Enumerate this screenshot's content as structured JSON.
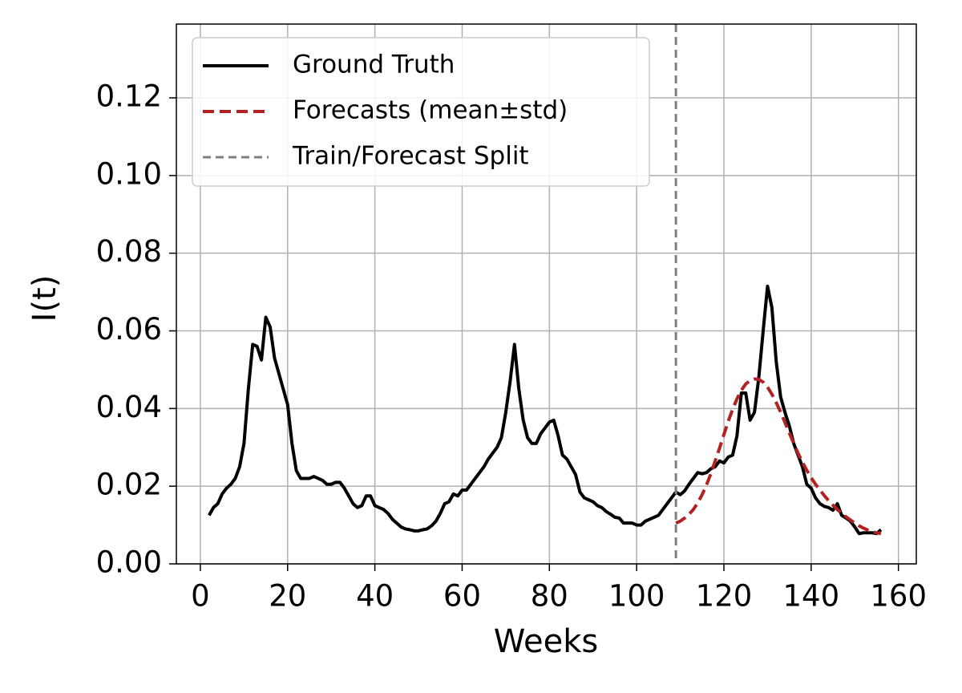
{
  "chart_data": {
    "type": "line",
    "xlabel": "Weeks",
    "ylabel": "I(t)",
    "xlim": [
      -5.5,
      164.1
    ],
    "ylim": [
      0,
      0.139
    ],
    "xticks": [
      0,
      20,
      40,
      60,
      80,
      100,
      120,
      140,
      160
    ],
    "yticks": [
      {
        "value": 0,
        "label": "0.00"
      },
      0.02,
      0.04,
      0.06,
      0.08,
      {
        "value": 0.1,
        "label": "0.10"
      },
      0.12
    ],
    "grid": true,
    "legend": "upper left",
    "series": [
      {
        "name": "Ground Truth",
        "color": "#000000",
        "style": "solid",
        "x": [
          2,
          3,
          4,
          5,
          6,
          7,
          8,
          9,
          10,
          11,
          12,
          13,
          14,
          15,
          16,
          17,
          18,
          19,
          20,
          21,
          22,
          23,
          24,
          25,
          26,
          27,
          28,
          29,
          30,
          31,
          32,
          33,
          34,
          35,
          36,
          37,
          38,
          39,
          40,
          41,
          42,
          43,
          44,
          45,
          46,
          47,
          48,
          49,
          50,
          51,
          52,
          53,
          54,
          55,
          56,
          57,
          58,
          59,
          60,
          61,
          62,
          63,
          64,
          65,
          66,
          67,
          68,
          69,
          70,
          71,
          72,
          73,
          74,
          75,
          76,
          77,
          78,
          79,
          80,
          81,
          82,
          83,
          84,
          85,
          86,
          87,
          88,
          89,
          90,
          91,
          92,
          93,
          94,
          95,
          96,
          97,
          98,
          99,
          100,
          101,
          102,
          103,
          104,
          105,
          106,
          107,
          108,
          109,
          110,
          111,
          112,
          113,
          114,
          115,
          116,
          117,
          118,
          119,
          120,
          121,
          122,
          123,
          124,
          125,
          126,
          127,
          128,
          129,
          130,
          131,
          132,
          133,
          134,
          135,
          136,
          137,
          138,
          139,
          140,
          141,
          142,
          143,
          144,
          145,
          146,
          147,
          148,
          149,
          150,
          151,
          152,
          153,
          154,
          155,
          156
        ],
        "values": [
          0.0125,
          0.0145,
          0.0155,
          0.018,
          0.0195,
          0.0205,
          0.022,
          0.025,
          0.031,
          0.045,
          0.0565,
          0.056,
          0.0525,
          0.0635,
          0.061,
          0.053,
          0.049,
          0.045,
          0.041,
          0.031,
          0.024,
          0.022,
          0.022,
          0.022,
          0.0225,
          0.022,
          0.0215,
          0.0205,
          0.0205,
          0.021,
          0.021,
          0.0195,
          0.0175,
          0.0155,
          0.0145,
          0.015,
          0.0175,
          0.0175,
          0.015,
          0.0145,
          0.014,
          0.013,
          0.0115,
          0.0105,
          0.0095,
          0.009,
          0.0088,
          0.0085,
          0.0085,
          0.0088,
          0.009,
          0.0098,
          0.011,
          0.013,
          0.0155,
          0.016,
          0.018,
          0.0175,
          0.019,
          0.019,
          0.0205,
          0.022,
          0.0235,
          0.025,
          0.027,
          0.0285,
          0.03,
          0.0325,
          0.039,
          0.047,
          0.0565,
          0.045,
          0.037,
          0.0325,
          0.031,
          0.031,
          0.0335,
          0.035,
          0.0365,
          0.037,
          0.033,
          0.028,
          0.027,
          0.025,
          0.023,
          0.0185,
          0.017,
          0.0165,
          0.016,
          0.015,
          0.0145,
          0.0135,
          0.0128,
          0.012,
          0.0118,
          0.0105,
          0.0105,
          0.0105,
          0.01,
          0.01,
          0.011,
          0.0115,
          0.012,
          0.0125,
          0.014,
          0.0155,
          0.017,
          0.0185,
          0.0178,
          0.0188,
          0.0205,
          0.022,
          0.0235,
          0.0232,
          0.0235,
          0.0245,
          0.025,
          0.0265,
          0.026,
          0.0275,
          0.028,
          0.033,
          0.044,
          0.044,
          0.037,
          0.039,
          0.048,
          0.06,
          0.0715,
          0.066,
          0.052,
          0.043,
          0.039,
          0.0355,
          0.031,
          0.028,
          0.025,
          0.0205,
          0.0195,
          0.017,
          0.0155,
          0.0148,
          0.0145,
          0.0138,
          0.0155,
          0.0125,
          0.0118,
          0.011,
          0.0095,
          0.0078,
          0.008,
          0.008,
          0.008,
          0.0078,
          0.0088
        ]
      },
      {
        "name": "Forecasts (mean±std)",
        "color": "#b22222",
        "style": "dashed",
        "x": [
          109,
          110,
          111,
          112,
          113,
          114,
          115,
          116,
          117,
          118,
          119,
          120,
          121,
          122,
          123,
          124,
          125,
          126,
          127,
          128,
          129,
          130,
          131,
          132,
          133,
          134,
          135,
          136,
          137,
          138,
          139,
          140,
          141,
          142,
          143,
          144,
          145,
          146,
          147,
          148,
          149,
          150,
          151,
          152,
          153,
          154,
          155,
          156
        ],
        "values": [
          0.0105,
          0.011,
          0.0118,
          0.0128,
          0.014,
          0.0157,
          0.0178,
          0.0203,
          0.0232,
          0.0265,
          0.0298,
          0.0333,
          0.0367,
          0.0398,
          0.0425,
          0.0447,
          0.0463,
          0.0472,
          0.0476,
          0.0475,
          0.0468,
          0.0455,
          0.0437,
          0.0415,
          0.0391,
          0.0364,
          0.0337,
          0.031,
          0.0285,
          0.0262,
          0.0241,
          0.0222,
          0.0205,
          0.019,
          0.0176,
          0.0163,
          0.0151,
          0.014,
          0.013,
          0.0121,
          0.0113,
          0.0105,
          0.0098,
          0.0092,
          0.0087,
          0.0083,
          0.008,
          0.0078
        ]
      }
    ],
    "split": {
      "name": "Train/Forecast Split",
      "x": 109,
      "color": "#808080"
    }
  }
}
